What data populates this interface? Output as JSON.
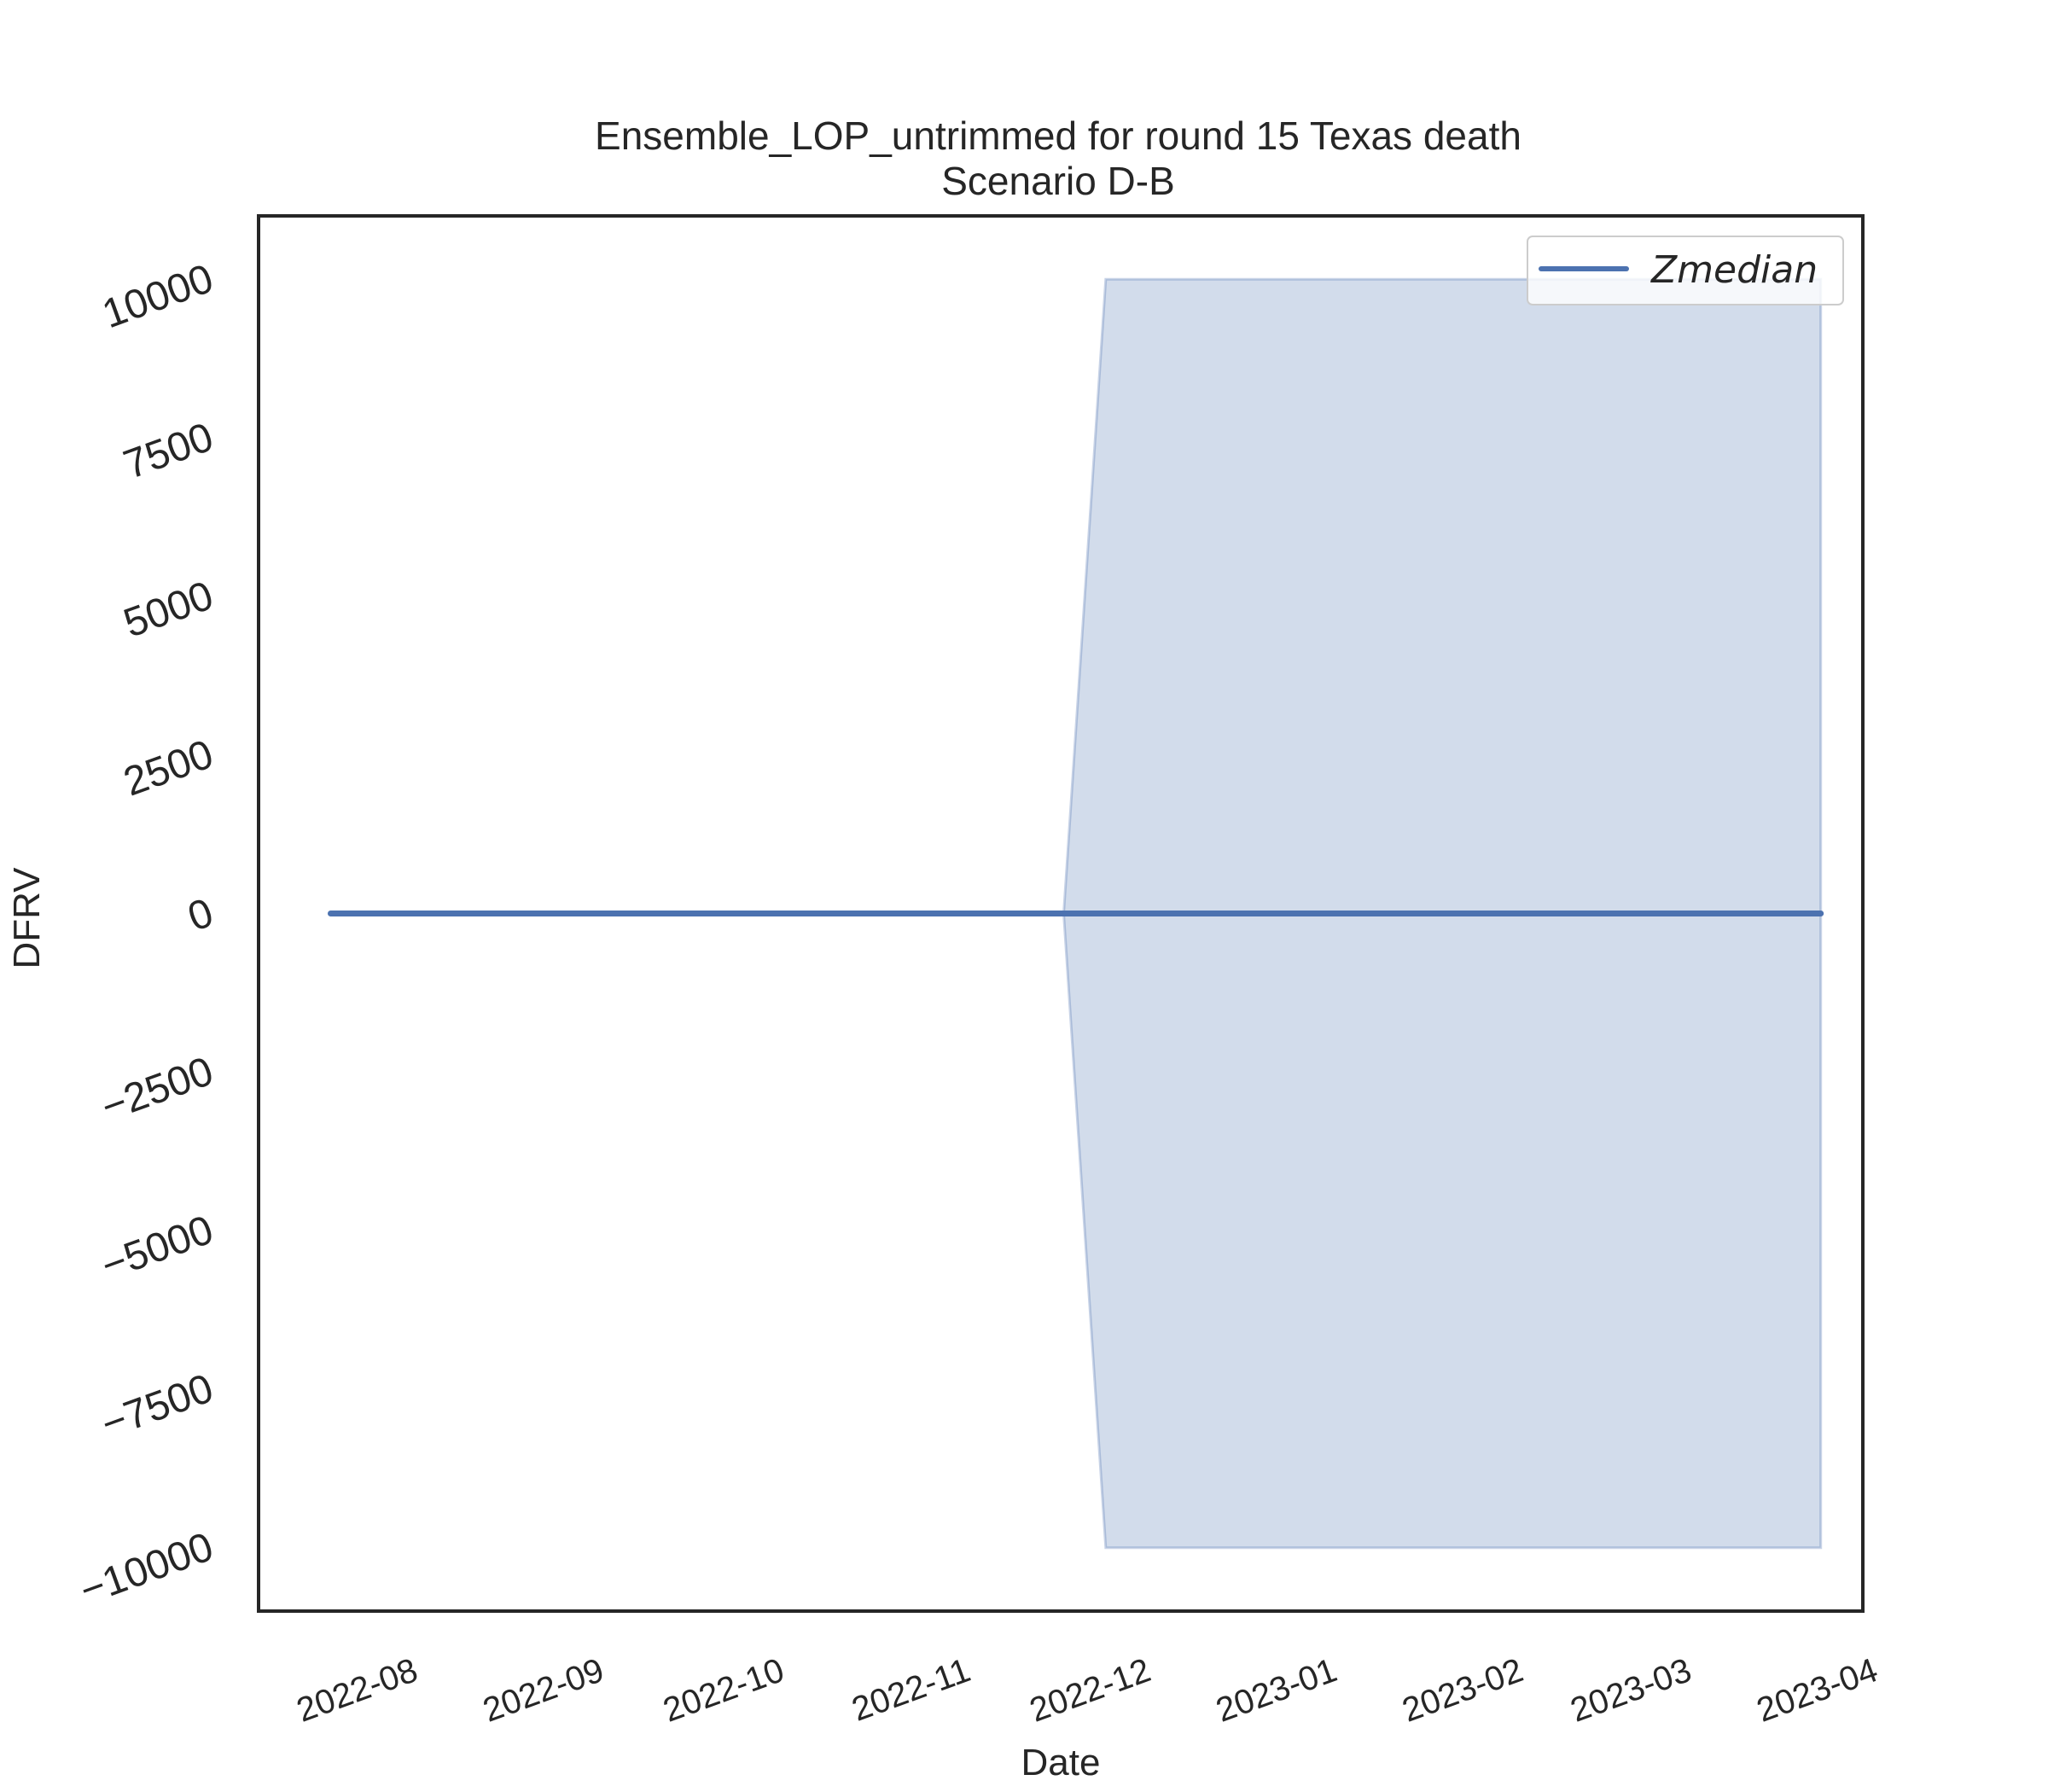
{
  "chart_data": {
    "type": "area",
    "title": "Ensemble_LOP_untrimmed for round 15 Texas death",
    "subtitle": "Scenario D-B",
    "xlabel": "Date",
    "ylabel": "DFRV",
    "xlim": [
      "2022-07-08",
      "2023-04-01"
    ],
    "ylim": [
      -11000,
      11000
    ],
    "x_ticks": [
      "2022-08-01",
      "2022-09-01",
      "2022-10-01",
      "2022-11-01",
      "2022-12-01",
      "2023-01-01",
      "2023-02-01",
      "2023-03-01",
      "2023-04-01"
    ],
    "x_tick_labels": [
      "2022-08",
      "2022-09",
      "2022-10",
      "2022-11",
      "2022-12",
      "2023-01",
      "2023-02",
      "2023-03",
      "2023-04"
    ],
    "y_ticks": [
      -10000,
      -7500,
      -5000,
      -2500,
      0,
      2500,
      5000,
      7500,
      10000
    ],
    "y_tick_labels": [
      "−10000",
      "−7500",
      "−5000",
      "−2500",
      "0",
      "2500",
      "5000",
      "7500",
      "10000"
    ],
    "grid": false,
    "legend_position": "top-right",
    "series": [
      {
        "name": "Zmedian",
        "color": "#4c72b0",
        "x": [
          "2022-07-20",
          "2022-11-19",
          "2023-03-25"
        ],
        "values": [
          0,
          0,
          0
        ]
      }
    ],
    "band": {
      "color": "#4c72b0",
      "opacity": 0.25,
      "x": [
        "2022-11-19",
        "2022-11-26",
        "2023-03-25"
      ],
      "lower": [
        0,
        -10000,
        -10000
      ],
      "upper": [
        0,
        10000,
        10000
      ]
    }
  }
}
